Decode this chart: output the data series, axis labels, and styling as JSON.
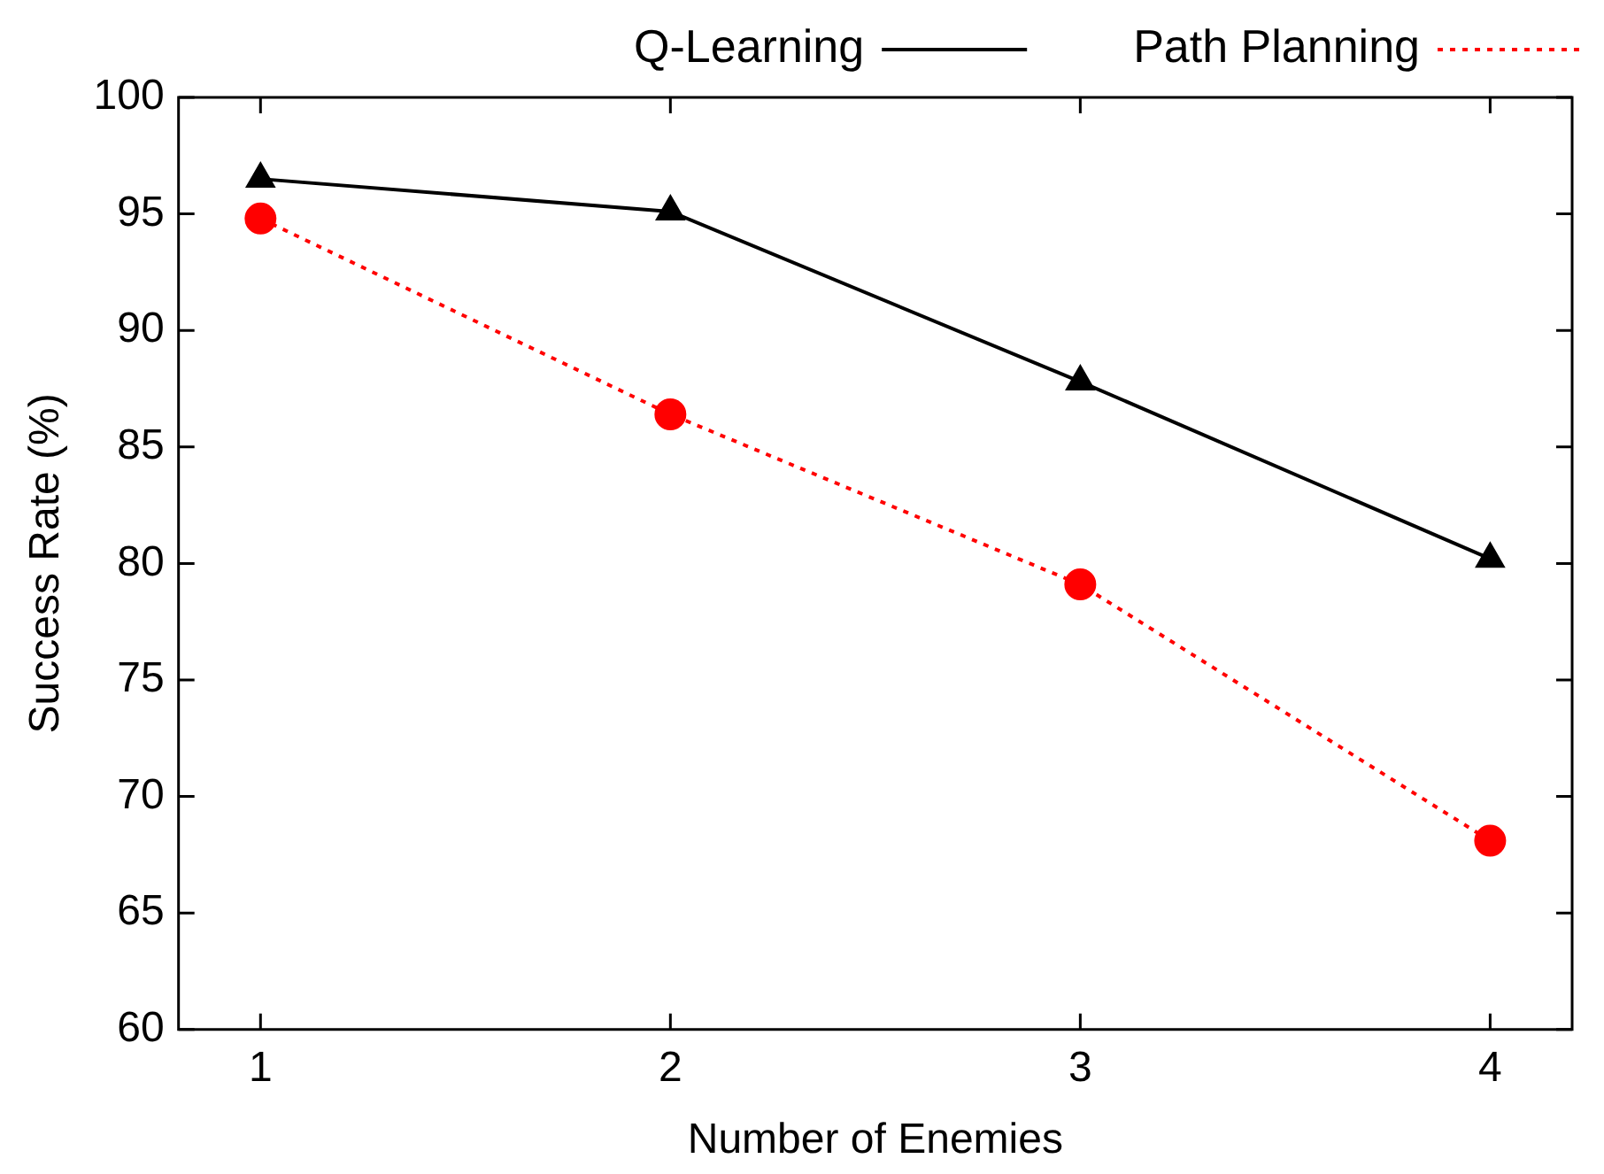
{
  "chart_data": {
    "type": "line",
    "xlabel": "Number of Enemies",
    "ylabel": "Success Rate (%)",
    "x": [
      1,
      2,
      3,
      4
    ],
    "series": [
      {
        "name": "Q-Learning",
        "color": "#000000",
        "values": [
          96.5,
          95.1,
          87.8,
          80.2
        ],
        "marker": "triangle",
        "line_style": "solid"
      },
      {
        "name": "Path Planning",
        "color": "#ff0000",
        "values": [
          94.8,
          86.4,
          79.1,
          68.1
        ],
        "marker": "circle",
        "line_style": "dotted"
      }
    ],
    "xlim": [
      0.8,
      4.2
    ],
    "xticks": [
      1,
      2,
      3,
      4
    ],
    "ylim": [
      60,
      100
    ],
    "yticks": [
      60,
      65,
      70,
      75,
      80,
      85,
      90,
      95,
      100
    ],
    "grid": false,
    "legend": "top right"
  }
}
